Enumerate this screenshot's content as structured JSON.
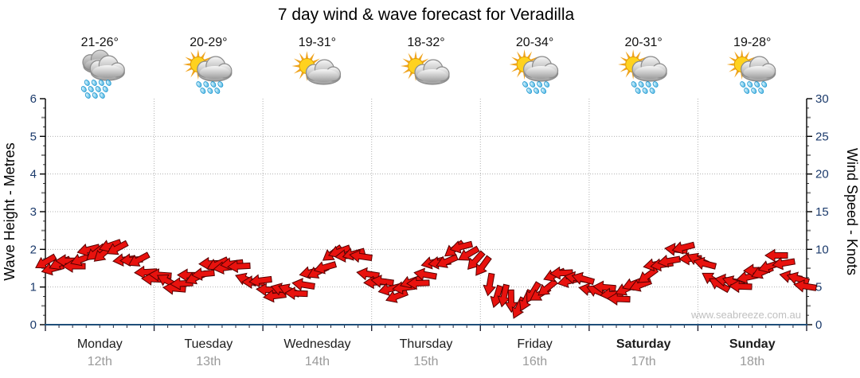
{
  "title": "7 day wind & wave forecast for Veradilla",
  "watermark": "www.seabreeze.com.au",
  "left_axis": {
    "label": "Wave Height - Metres",
    "ticks": [
      0,
      1,
      2,
      3,
      4,
      5,
      6
    ],
    "range": [
      0,
      6
    ]
  },
  "right_axis": {
    "label": "Wind Speed - Knots",
    "ticks": [
      0,
      5,
      10,
      15,
      20,
      25,
      30
    ],
    "range": [
      0,
      30
    ]
  },
  "days": [
    {
      "name": "Monday",
      "date": "12th",
      "temp": "21-26°",
      "icon": "rain",
      "weekend": false
    },
    {
      "name": "Tuesday",
      "date": "13th",
      "temp": "20-29°",
      "icon": "sun-cloud-rain",
      "weekend": false
    },
    {
      "name": "Wednesday",
      "date": "14th",
      "temp": "19-31°",
      "icon": "sun-cloud",
      "weekend": false
    },
    {
      "name": "Thursday",
      "date": "15th",
      "temp": "18-32°",
      "icon": "sun-cloud",
      "weekend": false
    },
    {
      "name": "Friday",
      "date": "16th",
      "temp": "20-34°",
      "icon": "sun-cloud-rain",
      "weekend": false
    },
    {
      "name": "Saturday",
      "date": "17th",
      "temp": "20-31°",
      "icon": "sun-cloud-rain",
      "weekend": true
    },
    {
      "name": "Sunday",
      "date": "18th",
      "temp": "19-28°",
      "icon": "sun-cloud-rain",
      "weekend": true
    }
  ],
  "chart_data": {
    "type": "line",
    "subtype": "wind-arrow-band",
    "x_categories": [
      "Monday 12th",
      "Tuesday 13th",
      "Wednesday 14th",
      "Thursday 15th",
      "Friday 16th",
      "Saturday 17th",
      "Sunday 18th"
    ],
    "step_hours": 3,
    "ylabel_left": "Wave Height - Metres",
    "ylabel_right": "Wind Speed - Knots",
    "ylim_left": [
      0,
      6
    ],
    "ylim_right": [
      0,
      30
    ],
    "grid": "dotted",
    "series": [
      {
        "name": "Wind Speed",
        "unit": "knots",
        "values": [
          8.3,
          7.8,
          8.2,
          9.2,
          9.9,
          10.1,
          9.0,
          7.8,
          6.4,
          5.6,
          5.3,
          6.6,
          7.4,
          8.3,
          7.6,
          6.2,
          5.0,
          4.3,
          4.2,
          5.4,
          7.2,
          8.8,
          9.9,
          9.0,
          6.4,
          4.8,
          4.3,
          5.3,
          7.0,
          8.3,
          9.6,
          10.2,
          7.6,
          4.6,
          2.9,
          2.8,
          3.8,
          5.4,
          6.8,
          6.0,
          5.2,
          4.4,
          3.9,
          4.6,
          6.2,
          7.6,
          9.2,
          10.0,
          8.6,
          6.4,
          5.3,
          5.6,
          6.4,
          7.8,
          8.8,
          6.6,
          4.4
        ],
        "arrow_dir_deg": [
          150,
          165,
          180,
          160,
          140,
          155,
          175,
          160,
          185,
          200,
          180,
          165,
          175,
          160,
          180,
          195,
          170,
          185,
          200,
          180,
          160,
          150,
          165,
          180,
          190,
          175,
          160,
          170,
          185,
          165,
          150,
          160,
          120,
          105,
          95,
          110,
          130,
          150,
          170,
          185,
          200,
          190,
          175,
          160,
          150,
          165,
          180,
          170,
          195,
          210,
          200,
          185,
          170,
          160,
          175,
          190,
          200
        ]
      }
    ]
  },
  "colors": {
    "arrow_fill": "#e8120e",
    "arrow_stroke": "#550000",
    "bottom_axis": "#1f4e79",
    "axis_line": "#000000",
    "grid": "#b0b0b0",
    "tick_minor": "#888888",
    "sun_ray": "#f0a41f",
    "sun_core": "#ffd21f",
    "cloud_light": "#f4f4f4",
    "cloud_dark": "#9d9d9d",
    "cloud_stroke": "#8a8a8a",
    "drop_fill": "#62c9ef",
    "drop_stroke": "#1f97cf"
  }
}
